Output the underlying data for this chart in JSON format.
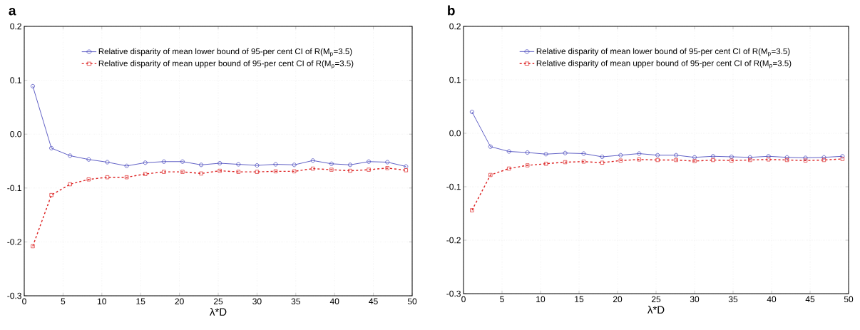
{
  "chart_data": [
    {
      "type": "line",
      "title": "a",
      "xlabel": "λ*D",
      "xlim": [
        0,
        50
      ],
      "ylim": [
        -0.3,
        0.2
      ],
      "grid": true,
      "legend": "top",
      "xticks": [
        0,
        5,
        10,
        15,
        20,
        25,
        30,
        35,
        40,
        45,
        50
      ],
      "yticks": [
        -0.3,
        -0.2,
        -0.1,
        {
          "value": 0,
          "label": "0.0"
        },
        0.1,
        0.2
      ],
      "x": [
        1.1,
        3.5,
        5.9,
        8.3,
        10.7,
        13.2,
        15.6,
        18.0,
        20.4,
        22.8,
        25.2,
        27.6,
        30.0,
        32.4,
        34.8,
        37.2,
        39.6,
        42.0,
        44.4,
        46.8,
        49.2
      ],
      "series": [
        {
          "name": "Relative disparity of mean lower bound of 95-per cent CI of R(M$_{p}$=3.5)",
          "color": "#3a3ab8",
          "marker": "circle",
          "line_style": "solid",
          "values": [
            0.089,
            -0.026,
            -0.04,
            -0.047,
            -0.052,
            -0.059,
            -0.053,
            -0.051,
            -0.051,
            -0.057,
            -0.054,
            -0.056,
            -0.058,
            -0.056,
            -0.057,
            -0.049,
            -0.055,
            -0.057,
            -0.051,
            -0.052,
            -0.06
          ]
        },
        {
          "name": "Relative disparity of mean upper bound of 95-per cent CI of R(M$_{p}$=3.5)",
          "color": "#dd2222",
          "marker": "square",
          "line_style": "dashed",
          "values": [
            -0.208,
            -0.113,
            -0.093,
            -0.084,
            -0.08,
            -0.08,
            -0.074,
            -0.07,
            -0.07,
            -0.073,
            -0.068,
            -0.07,
            -0.07,
            -0.069,
            -0.069,
            -0.064,
            -0.066,
            -0.068,
            -0.066,
            -0.063,
            -0.067
          ]
        }
      ]
    },
    {
      "type": "line",
      "title": "b",
      "xlabel": "λ*D",
      "xlim": [
        0,
        50
      ],
      "ylim": [
        -0.3,
        0.2
      ],
      "grid": true,
      "legend": "top",
      "xticks": [
        0,
        5,
        10,
        15,
        20,
        25,
        30,
        35,
        40,
        45,
        50
      ],
      "yticks": [
        -0.3,
        -0.2,
        -0.1,
        {
          "value": 0,
          "label": "0.0"
        },
        0.1,
        0.2
      ],
      "x": [
        1.1,
        3.5,
        5.9,
        8.3,
        10.7,
        13.2,
        15.6,
        18.0,
        20.4,
        22.8,
        25.2,
        27.6,
        30.0,
        32.4,
        34.8,
        37.2,
        39.6,
        42.0,
        44.4,
        46.8,
        49.2
      ],
      "series": [
        {
          "name": "Relative disparity of mean lower bound of 95-per cent CI of R(M$_{p}$=3.5)",
          "color": "#3a3ab8",
          "marker": "circle",
          "line_style": "solid",
          "values": [
            0.04,
            -0.025,
            -0.034,
            -0.036,
            -0.039,
            -0.037,
            -0.038,
            -0.044,
            -0.041,
            -0.038,
            -0.041,
            -0.041,
            -0.045,
            -0.043,
            -0.044,
            -0.045,
            -0.043,
            -0.045,
            -0.046,
            -0.045,
            -0.043
          ]
        },
        {
          "name": "Relative disparity of mean upper bound of 95-per cent CI of R(M$_{p}$=3.5)",
          "color": "#dd2222",
          "marker": "square",
          "line_style": "dashed",
          "values": [
            -0.144,
            -0.078,
            -0.066,
            -0.06,
            -0.057,
            -0.054,
            -0.053,
            -0.055,
            -0.051,
            -0.049,
            -0.05,
            -0.05,
            -0.052,
            -0.05,
            -0.051,
            -0.05,
            -0.049,
            -0.05,
            -0.051,
            -0.05,
            -0.048
          ]
        }
      ]
    }
  ]
}
